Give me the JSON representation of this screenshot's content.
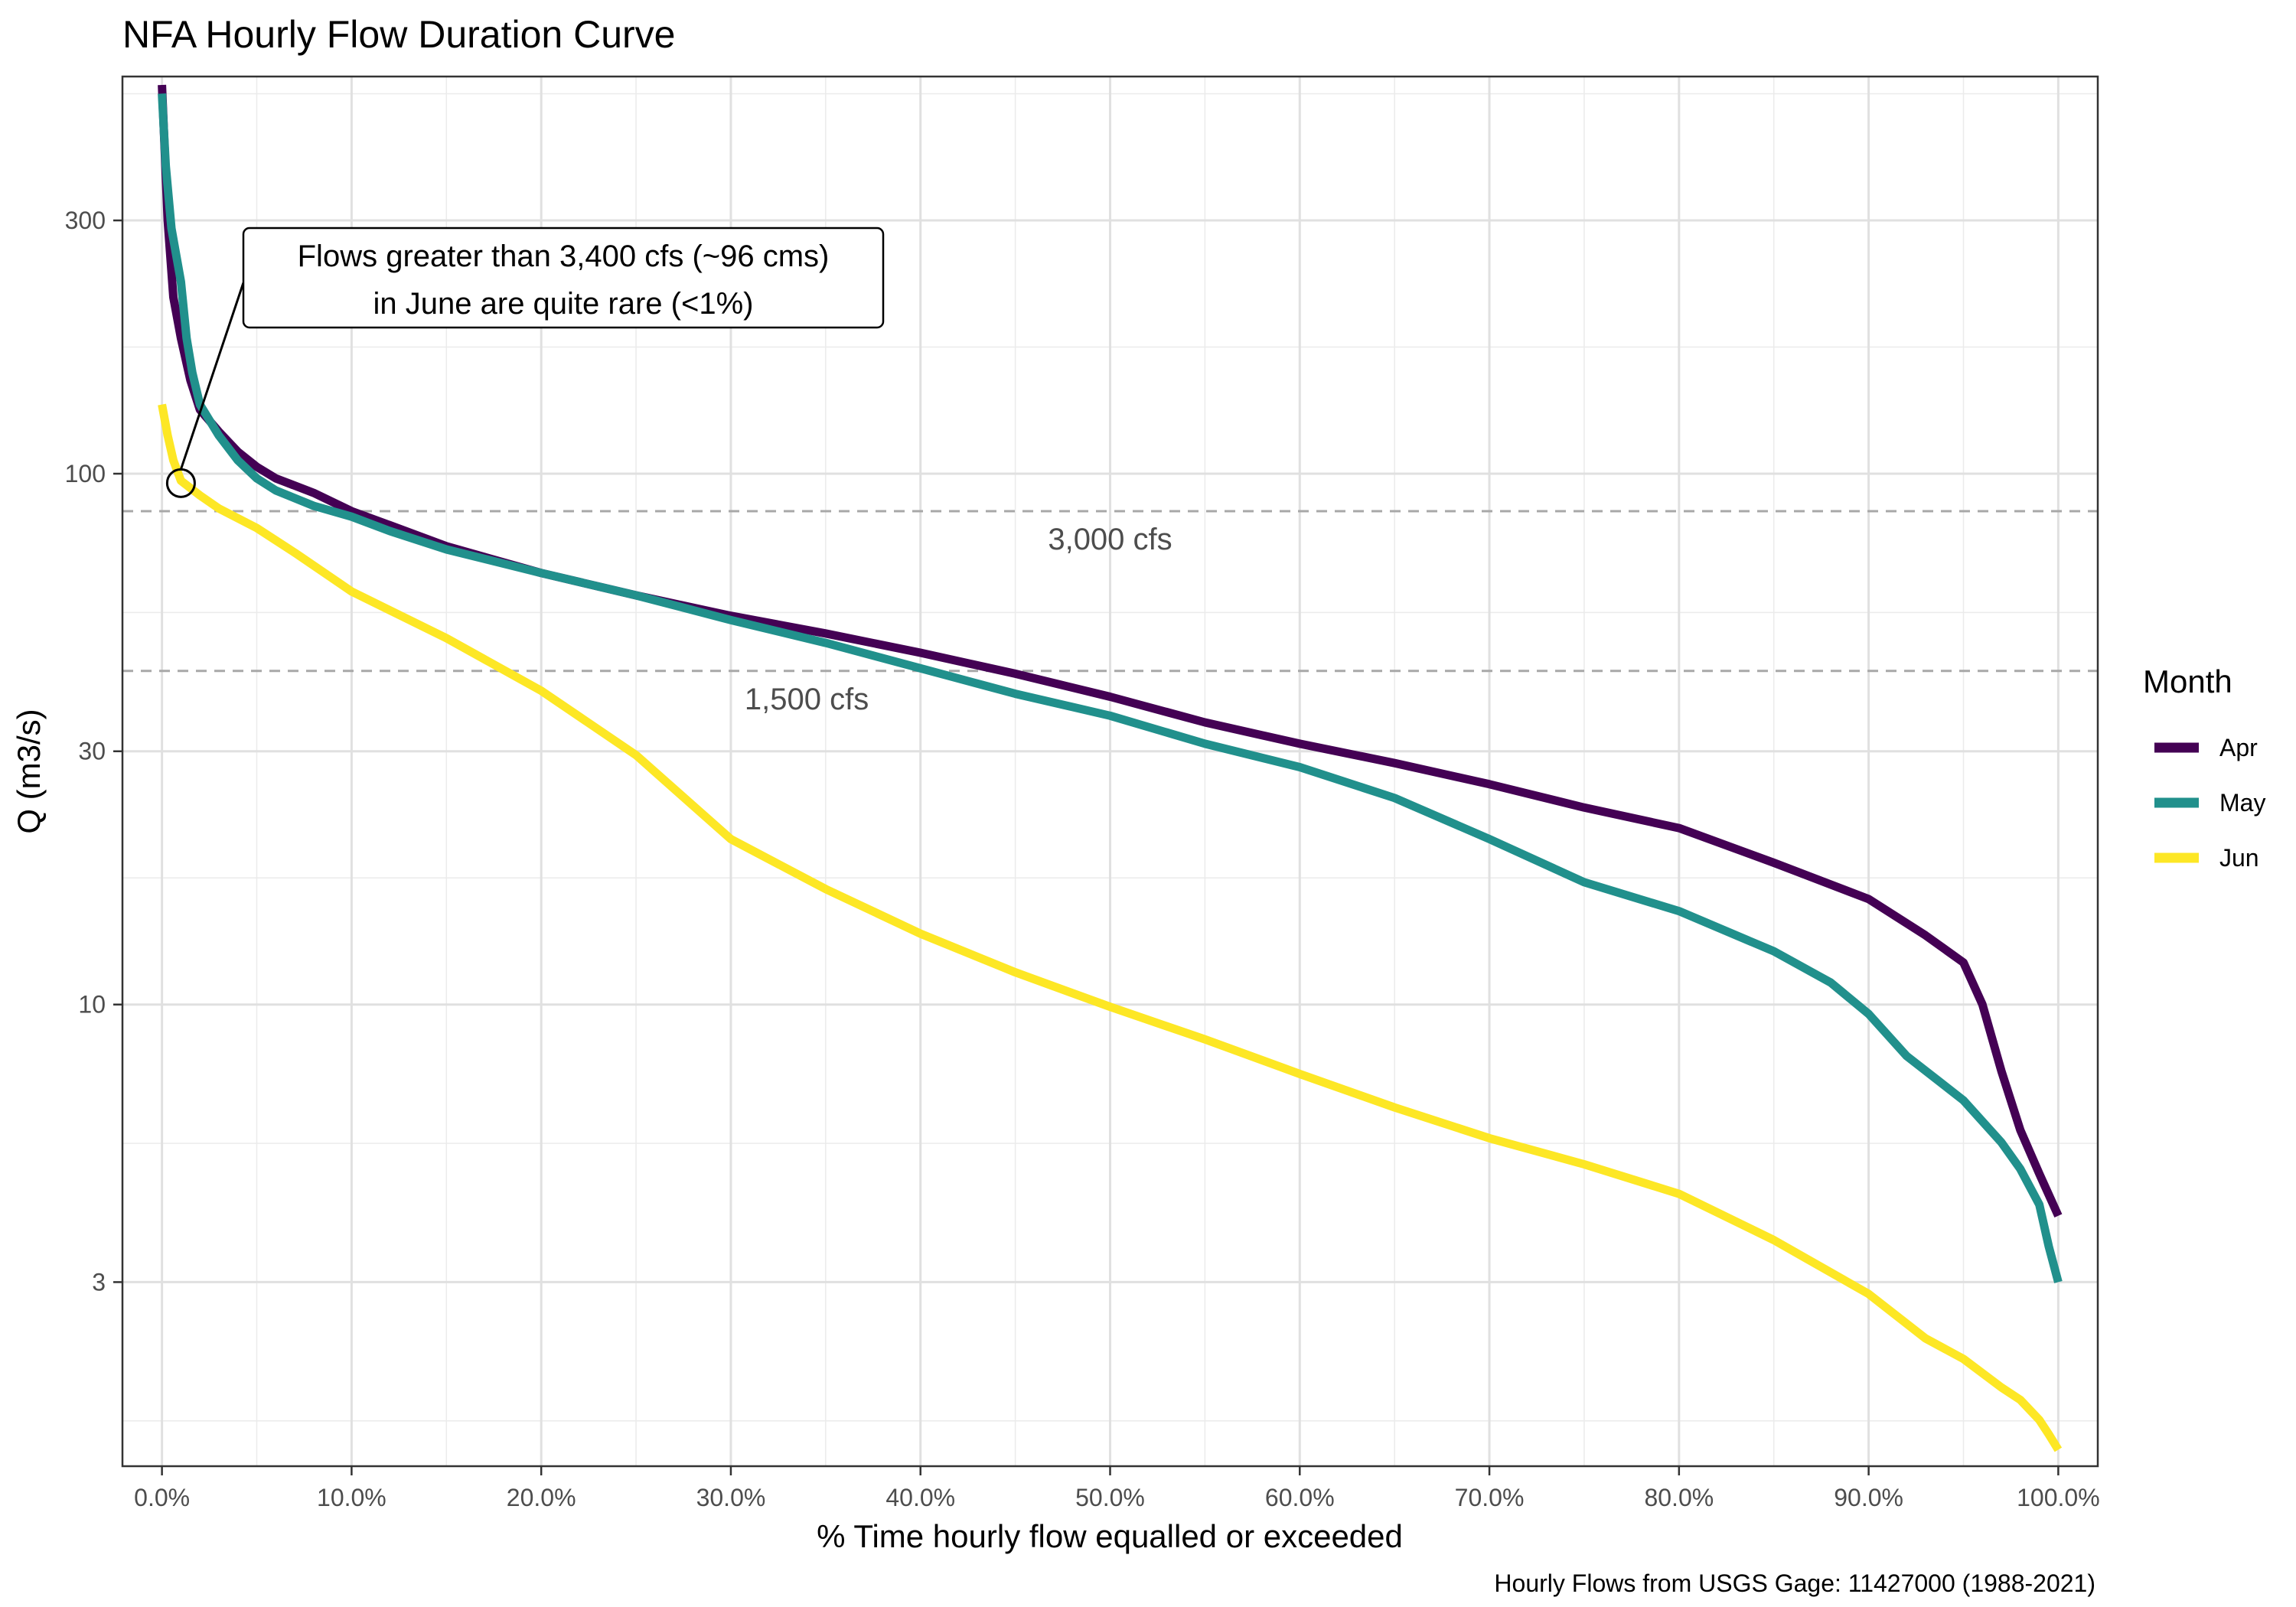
{
  "chart_data": {
    "type": "line",
    "title": "NFA Hourly Flow Duration Curve",
    "xlabel": "% Time hourly flow equalled or exceeded",
    "ylabel": "Q (m3/s)",
    "caption": "Hourly Flows from USGS Gage: 11427000 (1988-2021)",
    "y_scale": "log10",
    "xlim": [
      0,
      100
    ],
    "ylim": [
      1.35,
      560
    ],
    "x_ticks": [
      0,
      10,
      20,
      30,
      40,
      50,
      60,
      70,
      80,
      90,
      100
    ],
    "x_tick_labels": [
      "0.0%",
      "10.0%",
      "20.0%",
      "30.0%",
      "40.0%",
      "50.0%",
      "60.0%",
      "70.0%",
      "80.0%",
      "90.0%",
      "100.0%"
    ],
    "y_ticks": [
      3,
      10,
      30,
      100,
      300
    ],
    "y_tick_labels": [
      "3",
      "10",
      "30",
      "100",
      "300"
    ],
    "grid": true,
    "legend": {
      "title": "Month",
      "position": "right",
      "entries": [
        "Apr",
        "May",
        "Jun"
      ]
    },
    "reference_lines": [
      {
        "label": "3,000 cfs",
        "y": 85,
        "label_x": 50
      },
      {
        "label": "1,500 cfs",
        "y": 42.5,
        "label_x": 34
      }
    ],
    "annotation": {
      "lines": [
        "Flows greater than 3,400 cfs (~96 cms)",
        "in June are quite rare (<1%)"
      ],
      "point": {
        "x": 1,
        "y": 96
      }
    },
    "series": [
      {
        "name": "Apr",
        "color": "#440154",
        "x": [
          0,
          0.3,
          0.6,
          1,
          1.5,
          2,
          3,
          4,
          5,
          6,
          8,
          10,
          12,
          15,
          20,
          25,
          30,
          35,
          40,
          45,
          50,
          55,
          60,
          65,
          70,
          75,
          80,
          85,
          90,
          93,
          95,
          96,
          97,
          98,
          99,
          100
        ],
        "y": [
          540,
          300,
          215,
          180,
          150,
          132,
          120,
          110,
          103,
          98,
          92,
          85,
          80,
          73,
          65,
          59,
          54,
          50,
          46,
          42,
          38,
          34,
          31,
          28.5,
          26,
          23.5,
          21.5,
          18.5,
          15.8,
          13.5,
          12,
          10,
          7.5,
          5.8,
          4.8,
          4
        ]
      },
      {
        "name": "May",
        "color": "#21908C",
        "x": [
          0,
          0.2,
          0.5,
          1,
          1.3,
          1.6,
          2,
          3,
          4,
          5,
          6,
          8,
          10,
          12,
          15,
          20,
          25,
          30,
          35,
          40,
          45,
          50,
          55,
          60,
          65,
          70,
          75,
          80,
          85,
          88,
          90,
          92,
          95,
          97,
          98,
          99,
          99.5,
          100
        ],
        "y": [
          520,
          380,
          290,
          230,
          180,
          155,
          135,
          118,
          106,
          98,
          93,
          87,
          83,
          78,
          72,
          65,
          59,
          53,
          48,
          43,
          38.5,
          35,
          31,
          28,
          24.5,
          20.5,
          17,
          15,
          12.6,
          11,
          9.6,
          8,
          6.6,
          5.5,
          4.9,
          4.2,
          3.5,
          3
        ]
      },
      {
        "name": "Jun",
        "color": "#FDE725",
        "x": [
          0,
          0.3,
          0.6,
          1,
          2,
          3,
          5,
          7,
          10,
          15,
          20,
          25,
          30,
          35,
          40,
          45,
          50,
          55,
          60,
          65,
          70,
          75,
          80,
          85,
          90,
          93,
          95,
          97,
          98,
          99,
          99.5,
          100
        ],
        "y": [
          135,
          118,
          106,
          97,
          91,
          86,
          79,
          71,
          60,
          49,
          39,
          29.5,
          20.5,
          16.5,
          13.6,
          11.5,
          9.9,
          8.6,
          7.4,
          6.4,
          5.6,
          5,
          4.4,
          3.6,
          2.85,
          2.35,
          2.15,
          1.9,
          1.8,
          1.65,
          1.55,
          1.45
        ]
      }
    ]
  }
}
